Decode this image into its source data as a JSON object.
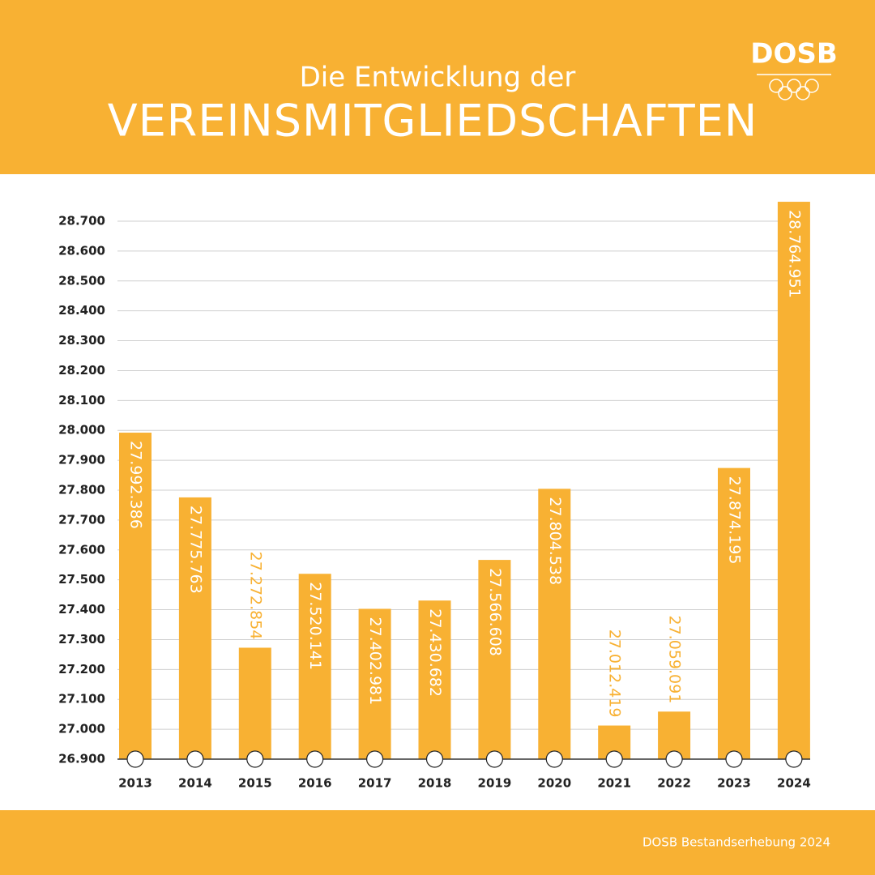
{
  "chart_data": {
    "type": "bar",
    "title": "Die Entwicklung der",
    "subtitle": "VEREINSMITGLIEDSCHAFTEN",
    "logo": "DOSB",
    "source": "DOSB Bestandserhebung 2024",
    "categories": [
      "2013",
      "2014",
      "2015",
      "2016",
      "2017",
      "2018",
      "2019",
      "2020",
      "2021",
      "2022",
      "2023",
      "2024"
    ],
    "values": [
      27992.386,
      27775.763,
      27272.854,
      27520.141,
      27402.981,
      27430.682,
      27566.608,
      27804.538,
      27012.419,
      27059.091,
      27874.195,
      28764.951
    ],
    "value_labels": [
      "27.992.386",
      "27.775.763",
      "27.272.854",
      "27.520.141",
      "27.402.981",
      "27.430.682",
      "27.566.608",
      "27.804.538",
      "27.012.419",
      "27.059.091",
      "27.874.195",
      "28.764.951"
    ],
    "color": "#f8b133",
    "ylim": [
      26900,
      28800
    ],
    "yticks": [
      {
        "value": 26900,
        "label": "26.900"
      },
      {
        "value": 27000,
        "label": "27.000"
      },
      {
        "value": 27100,
        "label": "27.100"
      },
      {
        "value": 27200,
        "label": "27.200"
      },
      {
        "value": 27300,
        "label": "27.300"
      },
      {
        "value": 27400,
        "label": "27.400"
      },
      {
        "value": 27500,
        "label": "27.500"
      },
      {
        "value": 27600,
        "label": "27.600"
      },
      {
        "value": 27700,
        "label": "27.700"
      },
      {
        "value": 27800,
        "label": "27.800"
      },
      {
        "value": 27900,
        "label": "27.900"
      },
      {
        "value": 28000,
        "label": "28.000"
      },
      {
        "value": 28100,
        "label": "28.100"
      },
      {
        "value": 28200,
        "label": "28.200"
      },
      {
        "value": 28300,
        "label": "28.300"
      },
      {
        "value": 28400,
        "label": "28.400"
      },
      {
        "value": 28500,
        "label": "28.500"
      },
      {
        "value": 28600,
        "label": "28.600"
      },
      {
        "value": 28700,
        "label": "28.700"
      }
    ],
    "grid": true
  }
}
